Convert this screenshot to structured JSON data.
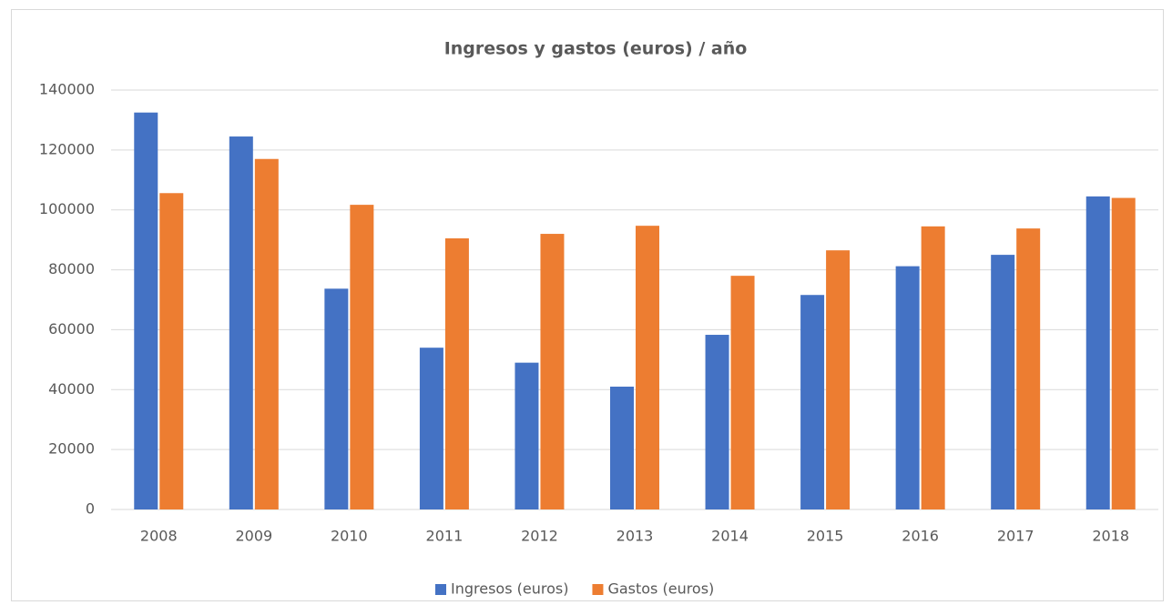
{
  "chart_data": {
    "type": "bar",
    "title": "Ingresos y gastos (euros) / año",
    "categories": [
      "2008",
      "2009",
      "2010",
      "2011",
      "2012",
      "2013",
      "2014",
      "2015",
      "2016",
      "2017",
      "2018"
    ],
    "series": [
      {
        "name": "Ingresos (euros)",
        "color": "#4472c4",
        "values": [
          132500,
          124500,
          73700,
          54000,
          49000,
          41000,
          58300,
          71600,
          81200,
          85000,
          104500
        ]
      },
      {
        "name": "Gastos (euros)",
        "color": "#ed7d31",
        "values": [
          105600,
          117000,
          101700,
          90500,
          92000,
          94700,
          78000,
          86500,
          94500,
          93800,
          104000
        ]
      }
    ],
    "ylim": [
      0,
      140000
    ],
    "yticks": [
      0,
      20000,
      40000,
      60000,
      80000,
      100000,
      120000,
      140000
    ],
    "grid": true,
    "legend": "bottom"
  }
}
